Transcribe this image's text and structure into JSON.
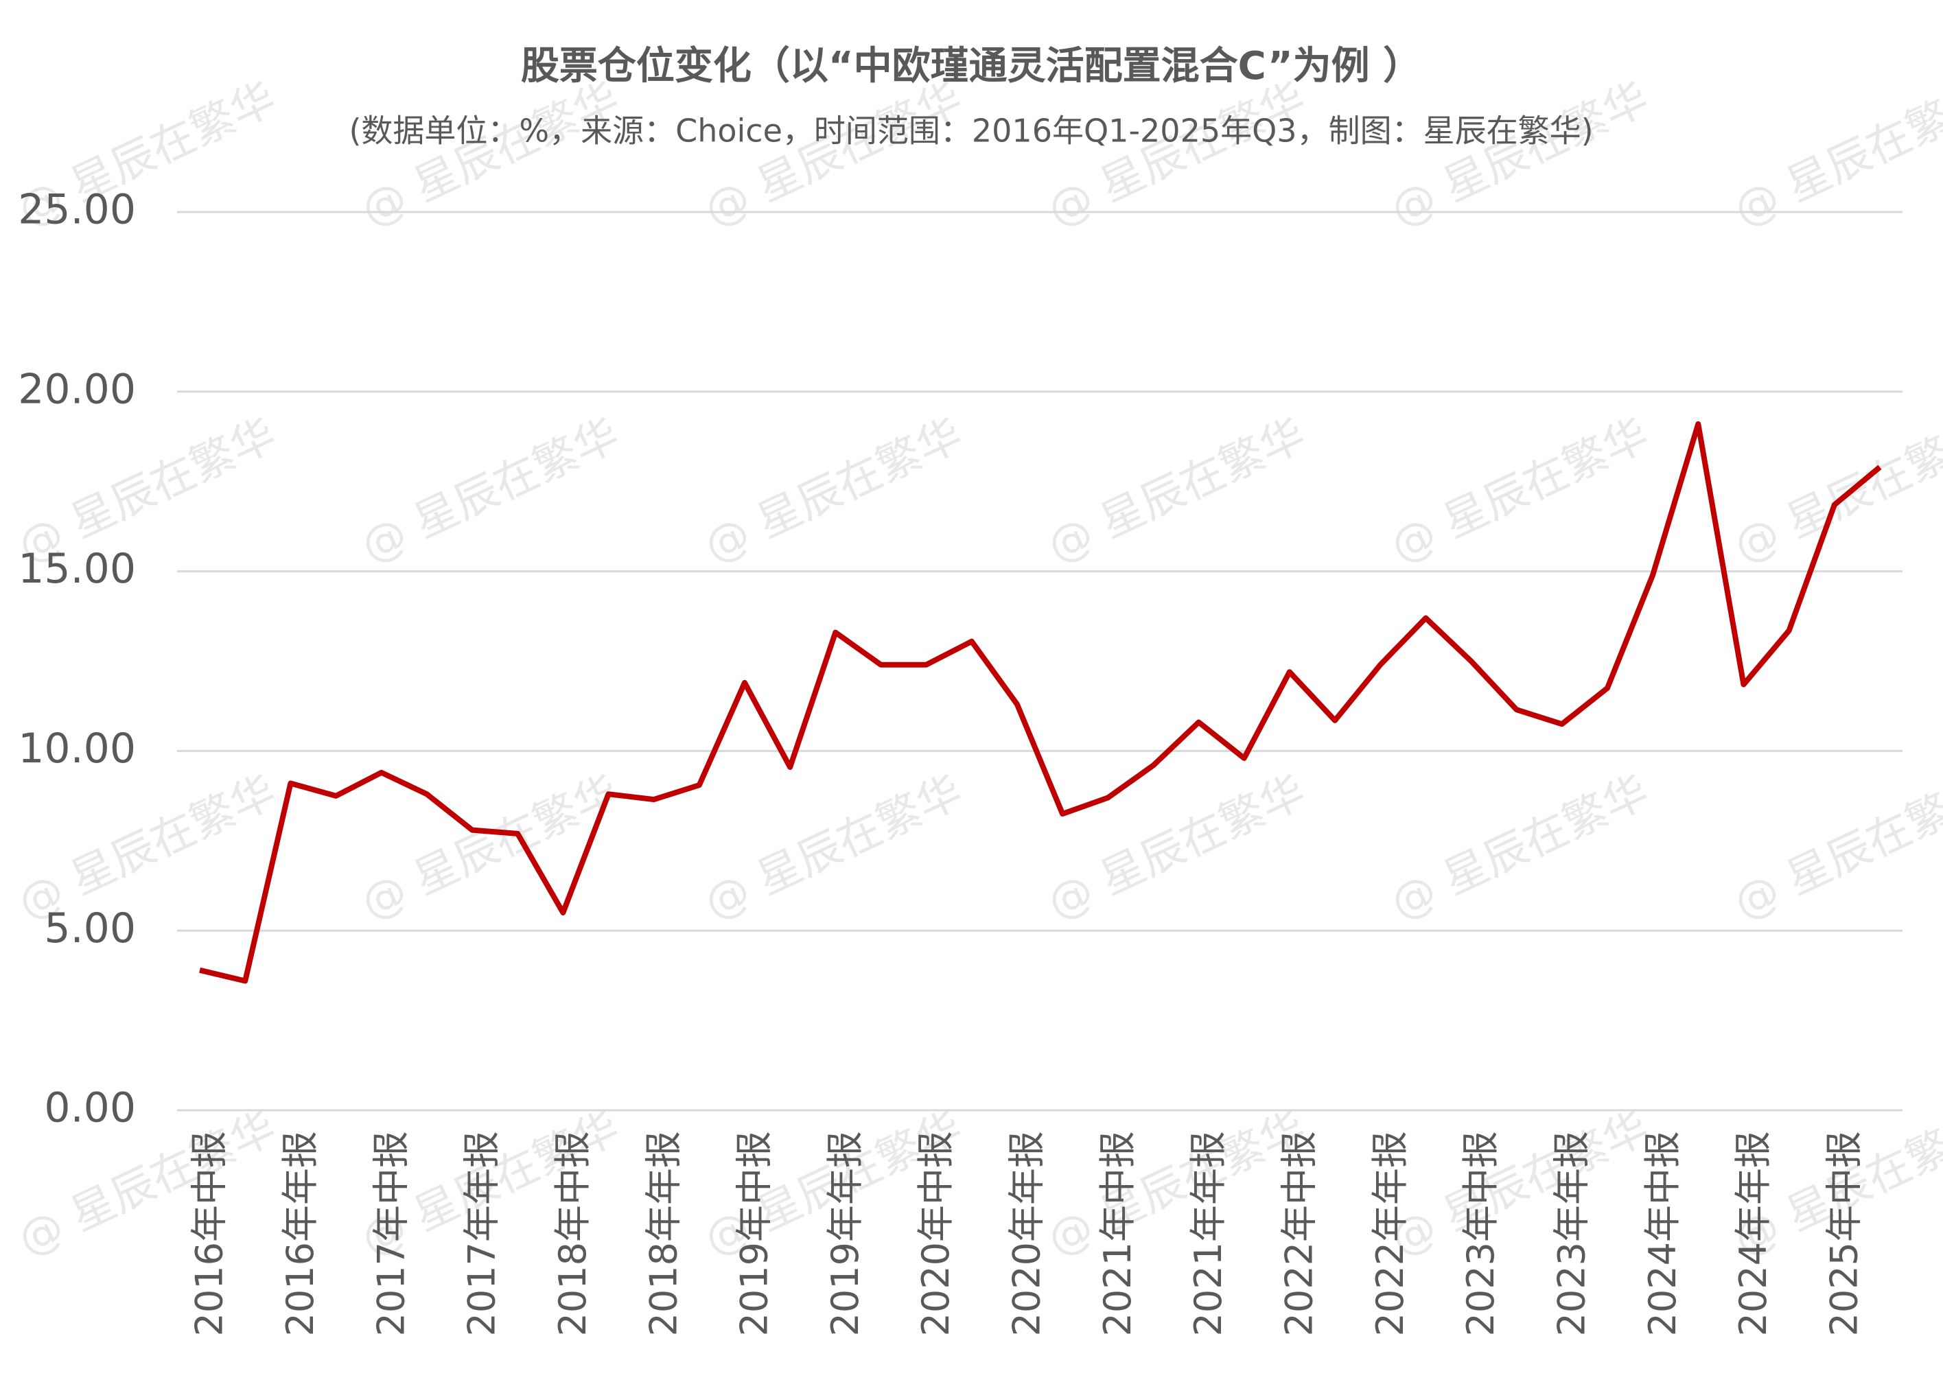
{
  "chart_data": {
    "type": "line",
    "title": "股票仓位变化（以“中欧瑾通灵活配置混合C”为例 ）",
    "subtitle": "(数据单位：%，来源：Choice，时间范围：2016年Q1-2025年Q3，制图：星辰在繁华)",
    "watermark": "@ 星辰在繁华",
    "categories": [
      "2016年中报",
      null,
      "2016年年报",
      null,
      "2017年中报",
      null,
      "2017年年报",
      null,
      "2018年中报",
      null,
      "2018年年报",
      null,
      "2019年中报",
      null,
      "2019年年报",
      null,
      "2020年中报",
      null,
      "2020年年报",
      null,
      "2021年中报",
      null,
      "2021年年报",
      null,
      "2022年中报",
      null,
      "2022年年报",
      null,
      "2023年中报",
      null,
      "2023年年报",
      null,
      "2024年中报",
      null,
      "2024年年报",
      null,
      "2025年中报",
      null
    ],
    "series": [
      {
        "name": "股票仓位",
        "color": "#c00000",
        "values": [
          3.9,
          3.6,
          9.1,
          8.75,
          9.4,
          8.8,
          7.8,
          7.7,
          5.5,
          8.8,
          8.65,
          9.05,
          11.9,
          9.55,
          13.3,
          12.4,
          12.4,
          13.05,
          11.3,
          8.25,
          8.7,
          9.6,
          10.8,
          9.8,
          12.2,
          10.85,
          12.4,
          13.7,
          12.5,
          11.15,
          10.75,
          11.75,
          14.9,
          19.1,
          11.85,
          13.35,
          16.85,
          17.9
        ]
      }
    ],
    "ylim": [
      0,
      25
    ],
    "yticks": [
      {
        "value": 0,
        "label": "0.00"
      },
      {
        "value": 5,
        "label": "5.00"
      },
      {
        "value": 10,
        "label": "10.00"
      },
      {
        "value": 15,
        "label": "15.00"
      },
      {
        "value": 20,
        "label": "20.00"
      },
      {
        "value": 25,
        "label": "25.00"
      }
    ],
    "grid": true
  }
}
